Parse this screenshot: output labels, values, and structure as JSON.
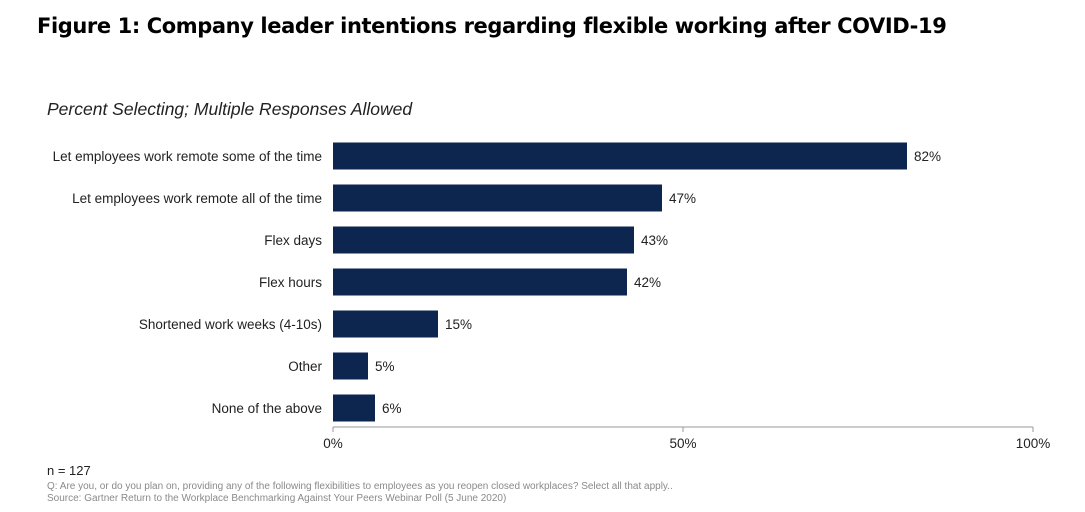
{
  "figure": {
    "title": "Figure 1: Company leader intentions regarding flexible working after COVID-19",
    "subtitle": "Percent Selecting; Multiple Responses Allowed"
  },
  "chart_data": {
    "type": "bar",
    "orientation": "horizontal",
    "categories": [
      "Let employees work remote some of the time",
      "Let employees work remote all of the time",
      "Flex days",
      "Flex hours",
      "Shortened work weeks (4-10s)",
      "Other",
      "None of the above"
    ],
    "values": [
      82,
      47,
      43,
      42,
      15,
      5,
      6
    ],
    "value_labels": [
      "82%",
      "47%",
      "43%",
      "42%",
      "15%",
      "5%",
      "6%"
    ],
    "xlim": [
      0,
      100
    ],
    "x_ticks": [
      0,
      50,
      100
    ],
    "x_tick_labels": [
      "0%",
      "50%",
      "100%"
    ],
    "bar_color": "#0d2650",
    "grid": false,
    "legend": "none"
  },
  "notes": {
    "n": "n = 127",
    "question": "Q: Are you, or do you plan on, providing any of the following flexibilities to employees as you reopen closed workplaces? Select all that apply..",
    "source": "Source: Gartner Return to the Workplace Benchmarking Against Your Peers Webinar Poll (5 June 2020)"
  }
}
